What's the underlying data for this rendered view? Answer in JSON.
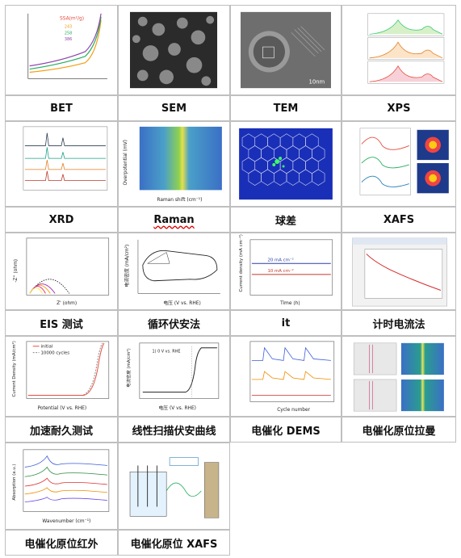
{
  "cells": [
    {
      "id": "bet",
      "label": "BET"
    },
    {
      "id": "sem",
      "label": "SEM"
    },
    {
      "id": "tem",
      "label": "TEM"
    },
    {
      "id": "xps",
      "label": "XPS"
    },
    {
      "id": "xrd",
      "label": "XRD"
    },
    {
      "id": "raman",
      "label": "Raman"
    },
    {
      "id": "aberration",
      "label": "球差"
    },
    {
      "id": "xafs",
      "label": "XAFS"
    },
    {
      "id": "eis",
      "label": "EIS 测试"
    },
    {
      "id": "cv",
      "label": "循环伏安法"
    },
    {
      "id": "it",
      "label": "it"
    },
    {
      "id": "chrono",
      "label": "计时电流法"
    },
    {
      "id": "accel",
      "label": "加速耐久测试"
    },
    {
      "id": "lsv",
      "label": "线性扫描伏安曲线"
    },
    {
      "id": "dems",
      "label": "电催化 DEMS"
    },
    {
      "id": "insitu_raman",
      "label": "电催化原位拉曼"
    },
    {
      "id": "insitu_ir",
      "label": "电催化原位红外"
    },
    {
      "id": "insitu_xafs",
      "label": "电催化原位 XAFS"
    }
  ],
  "thumbs": {
    "bet": {
      "legend_title": "SSA(m²/g)",
      "values": [
        "243",
        "258",
        "386"
      ]
    },
    "tem": {
      "scale": "10nm"
    },
    "raman": {
      "ylabel": "Overpotential (mV)",
      "xlabel": "Raman shift (cm⁻¹)"
    },
    "eis": {
      "ylabel": "-Z'' (ohm)",
      "xlabel": "Z' (ohm)"
    },
    "cv": {
      "ylabel": "电流密度 (mA/cm²)",
      "xlabel": "电压 (V vs. RHE)"
    },
    "it": {
      "ylabel": "Current density (mA cm⁻²)",
      "xlabel": "Time (h)",
      "line1": "20 mA cm⁻²",
      "line2": "10 mA cm⁻²"
    },
    "accel": {
      "legend": [
        "initial",
        "10000 cycles"
      ],
      "ylabel": "Current Density (mA/cm²)",
      "xlabel": "Potential (V vs. RHE)"
    },
    "lsv": {
      "ylabel": "电流密度 (mA/cm²)",
      "xlabel": "电压 (V vs. RHE)",
      "annot": "1) 0 V vs. RHE"
    },
    "dems": {
      "xlabel": "Cycle number"
    },
    "insitu_ir": {
      "ylabel": "Absorption (a.u.)",
      "xlabel": "Wavenumber (cm⁻¹)"
    }
  }
}
